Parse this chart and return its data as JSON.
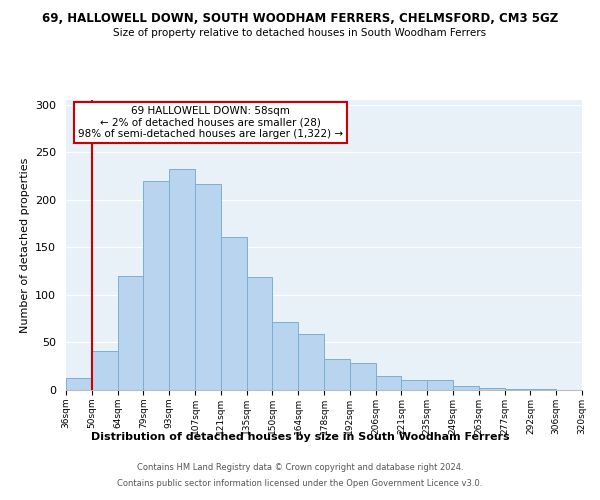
{
  "title": "69, HALLOWELL DOWN, SOUTH WOODHAM FERRERS, CHELMSFORD, CM3 5GZ",
  "subtitle": "Size of property relative to detached houses in South Woodham Ferrers",
  "xlabel": "Distribution of detached houses by size in South Woodham Ferrers",
  "ylabel": "Number of detached properties",
  "bin_labels": [
    "36sqm",
    "50sqm",
    "64sqm",
    "79sqm",
    "93sqm",
    "107sqm",
    "121sqm",
    "135sqm",
    "150sqm",
    "164sqm",
    "178sqm",
    "192sqm",
    "206sqm",
    "221sqm",
    "235sqm",
    "249sqm",
    "263sqm",
    "277sqm",
    "292sqm",
    "306sqm",
    "320sqm"
  ],
  "bar_values": [
    13,
    41,
    120,
    220,
    232,
    217,
    161,
    119,
    72,
    59,
    33,
    28,
    15,
    11,
    11,
    4,
    2,
    1,
    1,
    0
  ],
  "bar_color": "#b8d4ee",
  "bar_edge_color": "#7aafd4",
  "vline_x_idx": 1,
  "vline_color": "#cc0000",
  "annotation_title": "69 HALLOWELL DOWN: 58sqm",
  "annotation_line1": "← 2% of detached houses are smaller (28)",
  "annotation_line2": "98% of semi-detached houses are larger (1,322) →",
  "annotation_box_color": "#ffffff",
  "annotation_box_edge": "#cc0000",
  "ylim": [
    0,
    305
  ],
  "yticks": [
    0,
    50,
    100,
    150,
    200,
    250,
    300
  ],
  "footer1": "Contains HM Land Registry data © Crown copyright and database right 2024.",
  "footer2": "Contains public sector information licensed under the Open Government Licence v3.0.",
  "bg_color": "#e8f0f8"
}
